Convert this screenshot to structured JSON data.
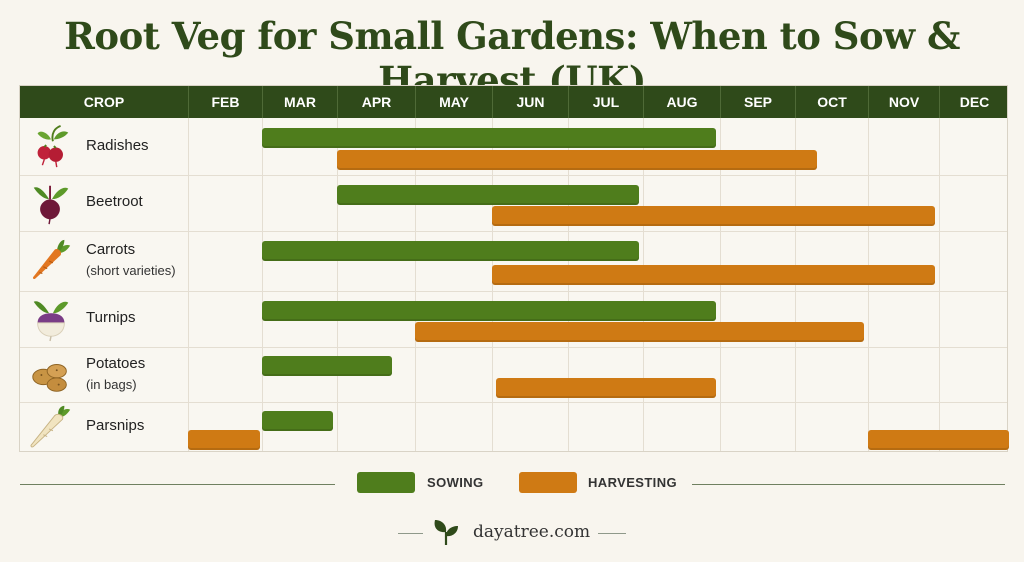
{
  "title": "Root Veg for Small Gardens: When to Sow & Harvest (UK)",
  "chart_data": {
    "type": "gantt",
    "categories": [
      "FEB",
      "MAR",
      "APR",
      "MAY",
      "JUN",
      "JUL",
      "AUG",
      "SEP",
      "OCT",
      "NOV",
      "DEC"
    ],
    "first_column_header": "CROP",
    "rows": [
      {
        "crop": "Radishes",
        "sub": "",
        "icon": "radish-icon",
        "sow": [
          1.0,
          6.95
        ],
        "harvest": [
          2.0,
          8.3
        ]
      },
      {
        "crop": "Beetroot",
        "sub": "",
        "icon": "beetroot-icon",
        "sow": [
          2.0,
          5.95
        ],
        "harvest": [
          4.0,
          9.95
        ]
      },
      {
        "crop": "Carrots",
        "sub": "(short varieties)",
        "icon": "carrot-icon",
        "sow": [
          1.0,
          5.95
        ],
        "harvest": [
          4.0,
          9.95
        ]
      },
      {
        "crop": "Turnips",
        "sub": "",
        "icon": "turnip-icon",
        "sow": [
          1.0,
          6.95
        ],
        "harvest": [
          3.0,
          8.95
        ]
      },
      {
        "crop": "Potatoes",
        "sub": "(in bags)",
        "icon": "potato-icon",
        "sow": [
          1.0,
          2.7
        ],
        "harvest": [
          4.05,
          6.95
        ]
      },
      {
        "crop": "Parsnips",
        "sub": "",
        "icon": "parsnip-icon",
        "sow": [
          1.0,
          1.95
        ],
        "harvest_segments": [
          [
            0.0,
            0.97
          ],
          [
            9.0,
            11.0
          ]
        ]
      }
    ],
    "legend": [
      {
        "label": "SOWING",
        "color": "#4f7d1c"
      },
      {
        "label": "HARVESTING",
        "color": "#cf7a14"
      }
    ]
  },
  "footer": {
    "site": "dayatree.com"
  }
}
